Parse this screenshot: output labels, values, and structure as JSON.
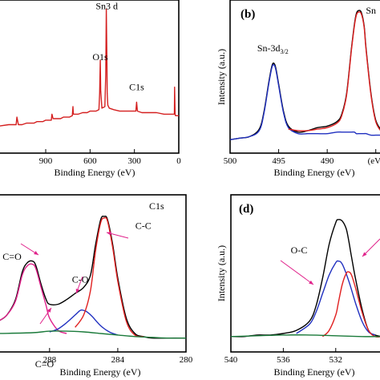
{
  "colors": {
    "survey": "#d41f1f",
    "black": "#000000",
    "red": "#e02020",
    "blue": "#2030c0",
    "green": "#1a7a3a",
    "arrow": "#e0218a"
  },
  "chart_data": [
    {
      "id": "a",
      "type": "line",
      "panel_label": "",
      "title": "",
      "xlabel": "Binding Energy (eV)",
      "ylabel": "",
      "xlim": [
        1220,
        0
      ],
      "ylim": [
        0,
        100
      ],
      "xticks": [
        900,
        600,
        300,
        0
      ],
      "xtick_labels": [
        "900",
        "600",
        "300",
        "0"
      ],
      "annotations": [
        {
          "text": "Sn3 d",
          "x": 487,
          "y": 96
        },
        {
          "text": "O1s",
          "x": 531,
          "y": 62
        },
        {
          "text": "C1s",
          "x": 285,
          "y": 42
        }
      ],
      "series": [
        {
          "name": "",
          "color_key": "survey",
          "x": [
            1220,
            1150,
            1110,
            1100,
            1095,
            1085,
            1060,
            1030,
            1000,
            980,
            960,
            940,
            920,
            900,
            880,
            862,
            858,
            850,
            820,
            800,
            780,
            760,
            740,
            720,
            716,
            713,
            700,
            680,
            650,
            620,
            600,
            580,
            560,
            540,
            535,
            531,
            528,
            520,
            500,
            494,
            490,
            486,
            484,
            480,
            470,
            440,
            400,
            380,
            360,
            340,
            320,
            300,
            290,
            285,
            280,
            250,
            200,
            150,
            100,
            60,
            30,
            28,
            25,
            22,
            20,
            15,
            10,
            0
          ],
          "y": [
            18,
            19,
            19,
            19,
            24,
            19,
            19,
            20,
            20,
            20,
            21,
            21,
            21,
            22,
            22,
            22,
            26,
            23,
            23,
            23,
            24,
            24,
            24,
            25,
            31,
            26,
            26,
            26,
            27,
            27,
            28,
            28,
            28,
            29,
            40,
            62,
            42,
            30,
            31,
            52,
            96,
            60,
            40,
            32,
            30,
            29,
            28,
            28,
            28,
            28,
            28,
            28,
            28,
            34,
            28,
            27,
            27,
            27,
            26,
            26,
            26,
            44,
            26,
            25,
            25,
            25,
            25,
            25
          ]
        }
      ]
    },
    {
      "id": "b",
      "type": "line",
      "panel_label": "(b)",
      "title": "",
      "xlabel": "Binding Energy (eV)",
      "ylabel": "Intensity (a.u.)",
      "xlim": [
        500,
        484.4
      ],
      "ylim": [
        0,
        100
      ],
      "xticks": [
        500,
        495,
        490,
        485
      ],
      "xtick_labels": [
        "500",
        "495",
        "490",
        "(eV)"
      ],
      "annotations": [
        {
          "text": "Sn-3d",
          "sub": "3/2",
          "x": 495.6,
          "y": 68
        },
        {
          "text": "Sn",
          "x": 485.5,
          "y": 93
        }
      ],
      "series": [
        {
          "name": "",
          "color_key": "black",
          "x": [
            500,
            499,
            498,
            497,
            496.5,
            496,
            495.7,
            495.5,
            495.3,
            495,
            494.5,
            494,
            493,
            492,
            491,
            490,
            489,
            488.5,
            488,
            487.5,
            487.2,
            487,
            486.8,
            486.5,
            486.2,
            486,
            485.5,
            485,
            484.4
          ],
          "y": [
            9,
            10,
            11,
            16,
            28,
            48,
            58,
            60,
            57,
            46,
            28,
            18,
            14,
            15,
            17,
            18,
            21,
            26,
            40,
            70,
            86,
            93,
            95,
            94,
            85,
            70,
            40,
            22,
            15
          ]
        },
        {
          "name": "",
          "color_key": "blue",
          "x": [
            500,
            499,
            498,
            497,
            496.5,
            496,
            495.7,
            495.5,
            495.3,
            495,
            494.5,
            494,
            493,
            492,
            491,
            490,
            489,
            488.5,
            488,
            487.5,
            487.2,
            487,
            486.8,
            486.5,
            486.2,
            486,
            485.5,
            485,
            484.4
          ],
          "y": [
            9,
            10,
            11,
            15,
            27,
            47,
            57,
            59,
            56,
            45,
            27,
            17,
            13,
            13,
            13,
            13,
            14,
            14,
            14,
            14,
            14,
            13,
            13,
            13,
            13,
            13,
            12,
            12,
            12
          ]
        },
        {
          "name": "",
          "color_key": "red",
          "x": [
            494,
            493,
            492,
            491,
            490,
            489,
            488.5,
            488,
            487.5,
            487.2,
            487,
            486.8,
            486.5,
            486.2,
            486,
            485.5,
            485,
            484.4
          ],
          "y": [
            16,
            15,
            15,
            16,
            17,
            20,
            25,
            39,
            69,
            85,
            92,
            94,
            93,
            84,
            69,
            39,
            21,
            14
          ]
        }
      ]
    },
    {
      "id": "c",
      "type": "line",
      "panel_label": "",
      "title": "C1s",
      "xlabel": "Binding Energy (eV)",
      "ylabel": "",
      "xlim": [
        291,
        280
      ],
      "ylim": [
        0,
        100
      ],
      "xticks": [
        288,
        284,
        280
      ],
      "xtick_labels": [
        "288",
        "284",
        "280"
      ],
      "annotations": [
        {
          "text": "C-C",
          "x": 282.5,
          "y": 80
        },
        {
          "text": "C-O",
          "x": 286.2,
          "y": 45
        },
        {
          "text": "C=O",
          "x": 290.2,
          "y": 60
        },
        {
          "text": "C=O",
          "x": 288.3,
          "y": -10
        }
      ],
      "series": [
        {
          "name": "",
          "color_key": "black",
          "x": [
            291,
            290.5,
            290,
            289.6,
            289.3,
            289,
            288.8,
            288.5,
            288.2,
            288,
            287.5,
            287,
            286.5,
            286,
            285.6,
            285.3,
            285,
            284.8,
            284.6,
            284.3,
            284,
            283.5,
            283,
            282.5,
            282,
            281,
            280
          ],
          "y": [
            20,
            24,
            34,
            52,
            58,
            59,
            56,
            44,
            34,
            31,
            31,
            34,
            38,
            42,
            50,
            70,
            86,
            88,
            86,
            70,
            48,
            22,
            12,
            10,
            9,
            9,
            9
          ]
        },
        {
          "name": "",
          "color_key": "arrow",
          "x": [
            291,
            290.5,
            290,
            289.6,
            289.3,
            289,
            288.8,
            288.5,
            288.2,
            288,
            287.5,
            287
          ],
          "y": [
            20,
            24,
            33,
            50,
            56,
            57,
            54,
            42,
            30,
            22,
            14,
            12
          ]
        },
        {
          "name": "",
          "color_key": "blue",
          "x": [
            288,
            287.5,
            287,
            286.5,
            286.2,
            286,
            285.8,
            285.5,
            285,
            284.5,
            284
          ],
          "y": [
            13,
            15,
            19,
            24,
            27,
            27,
            26,
            23,
            17,
            13,
            11
          ]
        },
        {
          "name": "",
          "color_key": "red",
          "x": [
            286.5,
            286,
            285.6,
            285.3,
            285,
            284.8,
            284.6,
            284.3,
            284,
            283.5,
            283,
            282.5
          ],
          "y": [
            16,
            24,
            40,
            66,
            84,
            87,
            85,
            68,
            46,
            20,
            11,
            10
          ]
        },
        {
          "name": "",
          "color_key": "green",
          "x": [
            291,
            289,
            288,
            287,
            286,
            285,
            284,
            283,
            282,
            281,
            280
          ],
          "y": [
            12,
            12.5,
            13.5,
            13.5,
            13,
            12,
            11,
            10,
            9.5,
            9,
            9
          ]
        }
      ]
    },
    {
      "id": "d",
      "type": "line",
      "panel_label": "(d)",
      "title": "",
      "xlabel": "Binding Energy (eV)",
      "ylabel": "Intensity (a.u.)",
      "xlim": [
        540,
        528.5
      ],
      "ylim": [
        0,
        100
      ],
      "xticks": [
        540,
        536,
        532
      ],
      "xtick_labels": [
        "540",
        "536",
        "532"
      ],
      "annotations": [
        {
          "text": "O-C",
          "x": 534.8,
          "y": 64
        }
      ],
      "series": [
        {
          "name": "",
          "color_key": "black",
          "x": [
            540,
            539,
            538,
            537,
            536,
            535,
            534,
            533.5,
            533,
            532.5,
            532,
            531.8,
            531.5,
            531.2,
            531,
            530.8,
            530.5,
            530,
            529.5,
            529,
            528.5
          ],
          "y": [
            10,
            10,
            11,
            11,
            12,
            14,
            20,
            30,
            48,
            70,
            84,
            86,
            85,
            80,
            72,
            62,
            48,
            28,
            14,
            11,
            10
          ]
        },
        {
          "name": "",
          "color_key": "blue",
          "x": [
            535,
            534,
            533.5,
            533,
            532.5,
            532,
            531.8,
            531.5,
            531,
            530.5,
            530,
            529.5,
            529
          ],
          "y": [
            12,
            18,
            26,
            38,
            50,
            58,
            59,
            57,
            46,
            32,
            20,
            13,
            11
          ]
        },
        {
          "name": "",
          "color_key": "red",
          "x": [
            533,
            532.5,
            532,
            531.8,
            531.5,
            531.2,
            531,
            530.8,
            530.5,
            530,
            529.5,
            529,
            528.5
          ],
          "y": [
            10,
            14,
            24,
            32,
            44,
            51,
            52,
            50,
            42,
            26,
            14,
            10,
            10
          ]
        },
        {
          "name": "",
          "color_key": "green",
          "x": [
            540,
            538,
            536,
            534,
            532,
            530,
            528.5
          ],
          "y": [
            10,
            10.5,
            11,
            11,
            10.5,
            10,
            10
          ]
        }
      ]
    }
  ]
}
